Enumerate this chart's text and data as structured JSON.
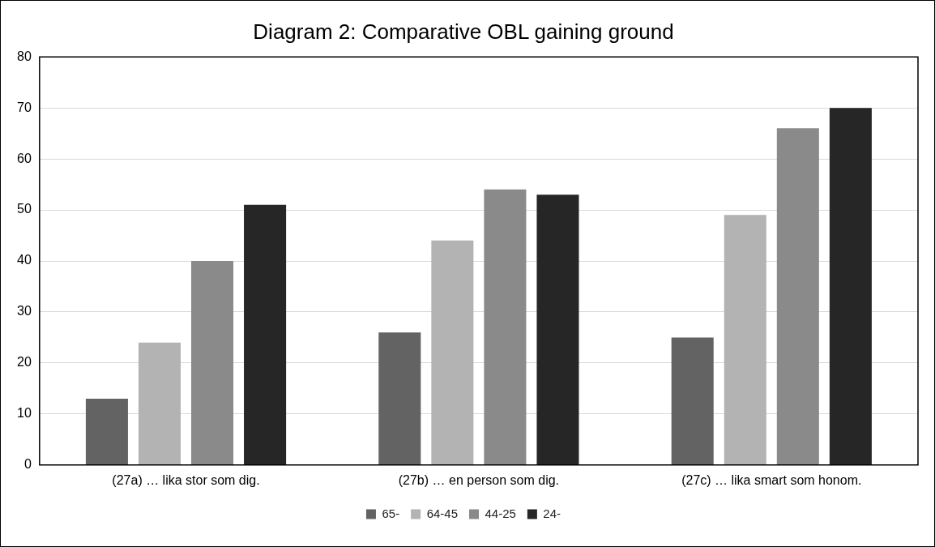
{
  "chart_data": {
    "type": "bar",
    "title": "Diagram 2: Comparative OBL gaining ground",
    "categories": [
      "(27a) … lika stor som dig.",
      "(27b) … en person som dig.",
      "(27c) … lika smart som honom."
    ],
    "series": [
      {
        "name": "65-",
        "color": "#636363",
        "values": [
          13,
          26,
          25
        ]
      },
      {
        "name": "64-45",
        "color": "#b3b3b3",
        "values": [
          24,
          44,
          49
        ]
      },
      {
        "name": "44-25",
        "color": "#8a8a8a",
        "values": [
          40,
          54,
          66
        ]
      },
      {
        "name": "24-",
        "color": "#262626",
        "values": [
          51,
          53,
          70
        ]
      }
    ],
    "ylim": [
      0,
      80
    ],
    "yticks": [
      0,
      10,
      20,
      30,
      40,
      50,
      60,
      70,
      80
    ],
    "grid": "y",
    "legend": "bottom"
  }
}
